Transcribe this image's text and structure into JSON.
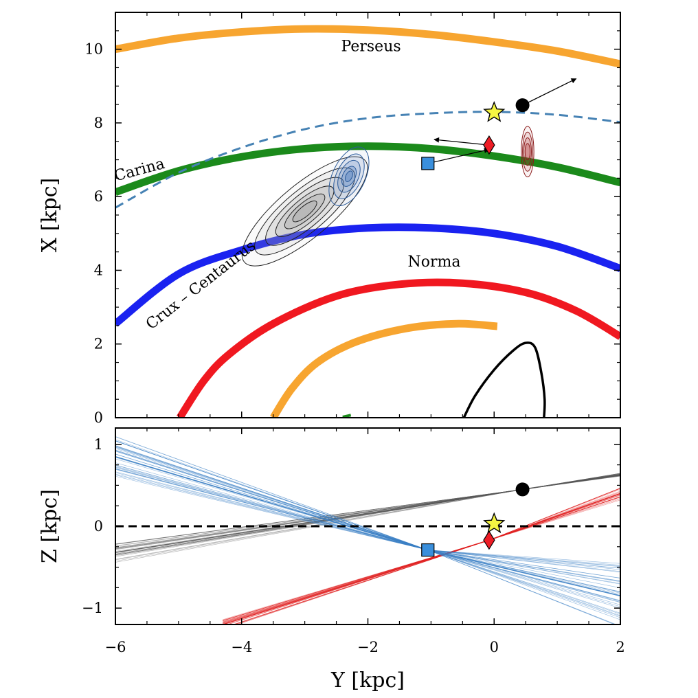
{
  "chart_data": [
    {
      "type": "line",
      "panel": "top",
      "xlabel": "Y [kpc]",
      "ylabel": "X [kpc]",
      "xlim": [
        -6,
        2
      ],
      "ylim": [
        0,
        11
      ],
      "xticks": [
        -6,
        -4,
        -2,
        0,
        2
      ],
      "yticks": [
        0,
        2,
        4,
        6,
        8,
        10
      ],
      "xtick_labels": [
        "",
        "",
        "",
        "",
        ""
      ],
      "ytick_labels": [
        "0",
        "2",
        "4",
        "6",
        "8",
        "10"
      ],
      "grid": false,
      "arms": [
        {
          "label": "Perseus",
          "color": "#f7a530",
          "width": 11,
          "label_pos": [
            -1.95,
            9.95
          ],
          "label_rotation": 0,
          "points": [
            [
              -6,
              10.0
            ],
            [
              -5,
              10.3
            ],
            [
              -4,
              10.47
            ],
            [
              -3,
              10.55
            ],
            [
              -2,
              10.52
            ],
            [
              -1,
              10.4
            ],
            [
              0,
              10.2
            ],
            [
              1,
              9.95
            ],
            [
              2,
              9.6
            ]
          ]
        },
        {
          "label": "Carina",
          "color": "#1b8a1b",
          "width": 11,
          "label_pos": [
            -5.6,
            6.6
          ],
          "label_rotation": -15,
          "points": [
            [
              -6,
              6.12
            ],
            [
              -5,
              6.7
            ],
            [
              -4,
              7.08
            ],
            [
              -3,
              7.3
            ],
            [
              -2,
              7.37
            ],
            [
              -1,
              7.3
            ],
            [
              0,
              7.1
            ],
            [
              1,
              6.8
            ],
            [
              2,
              6.38
            ]
          ]
        },
        {
          "label": "Crux – Centaurus",
          "color": "#1a22f0",
          "width": 11,
          "label_pos": [
            -4.6,
            3.5
          ],
          "label_rotation": -38,
          "points": [
            [
              -6,
              2.55
            ],
            [
              -5,
              3.9
            ],
            [
              -4,
              4.55
            ],
            [
              -3,
              4.98
            ],
            [
              -2,
              5.15
            ],
            [
              -1,
              5.15
            ],
            [
              0,
              5.0
            ],
            [
              1,
              4.65
            ],
            [
              2,
              4.05
            ]
          ]
        },
        {
          "label": "Norma",
          "color": "#f01820",
          "width": 11,
          "label_pos": [
            -0.95,
            4.1
          ],
          "label_rotation": 0,
          "points": [
            [
              -4.98,
              0
            ],
            [
              -4.6,
              1.0
            ],
            [
              -4.2,
              1.72
            ],
            [
              -3.5,
              2.55
            ],
            [
              -2.5,
              3.3
            ],
            [
              -1.5,
              3.62
            ],
            [
              -0.5,
              3.65
            ],
            [
              0.5,
              3.4
            ],
            [
              1.3,
              2.9
            ],
            [
              2,
              2.2
            ]
          ]
        },
        {
          "label": "",
          "color": "#f7a530",
          "width": 11,
          "label_pos": null,
          "label_rotation": 0,
          "points": [
            [
              -3.5,
              0
            ],
            [
              -3.2,
              0.8
            ],
            [
              -2.8,
              1.5
            ],
            [
              -2.2,
              2.05
            ],
            [
              -1.4,
              2.42
            ],
            [
              -0.6,
              2.55
            ],
            [
              0.05,
              2.48
            ]
          ]
        }
      ],
      "solar_circle": {
        "style": "dashed",
        "color": "#4682b4",
        "points": [
          [
            -6,
            5.7
          ],
          [
            -5,
            6.65
          ],
          [
            -4,
            7.33
          ],
          [
            -3,
            7.83
          ],
          [
            -2,
            8.13
          ],
          [
            -1,
            8.26
          ],
          [
            0,
            8.3
          ],
          [
            1,
            8.22
          ],
          [
            2,
            8.02
          ]
        ]
      },
      "orbit": {
        "color": "#000000",
        "points": [
          [
            -0.48,
            0
          ],
          [
            -0.3,
            0.6
          ],
          [
            0.0,
            1.3
          ],
          [
            0.3,
            1.82
          ],
          [
            0.5,
            2.03
          ],
          [
            0.65,
            1.9
          ],
          [
            0.75,
            1.2
          ],
          [
            0.8,
            0.5
          ],
          [
            0.79,
            0
          ]
        ]
      },
      "markers": [
        {
          "symbol": "star",
          "x": 0.0,
          "y": 8.28,
          "color": "#f5f542"
        },
        {
          "symbol": "circle",
          "x": 0.45,
          "y": 8.48,
          "color": "#000000"
        },
        {
          "symbol": "diamond",
          "x": -0.08,
          "y": 7.4,
          "color": "#ee1c25"
        },
        {
          "symbol": "square",
          "x": -1.05,
          "y": 6.9,
          "color": "#3a8fdc"
        }
      ],
      "arrows": [
        {
          "from": [
            0.45,
            8.48
          ],
          "to": [
            1.3,
            9.2
          ]
        },
        {
          "from": [
            -0.08,
            7.4
          ],
          "to": [
            -0.95,
            7.55
          ]
        },
        {
          "from": [
            -1.05,
            6.9
          ],
          "to": [
            -0.08,
            7.28
          ]
        }
      ],
      "contours": [
        {
          "color": "#222222",
          "center": [
            -3.0,
            5.6
          ],
          "rx": [
            1.25,
            1.0,
            0.78,
            0.58,
            0.4,
            0.24
          ],
          "ry": [
            0.42,
            0.33,
            0.26,
            0.19,
            0.13,
            0.08
          ],
          "angle": -40,
          "shade": "#aaaaaa"
        },
        {
          "color": "#2a5a9a",
          "center": [
            -2.3,
            6.55
          ],
          "rx": [
            0.5,
            0.38,
            0.27,
            0.17,
            0.09
          ],
          "ry": [
            0.26,
            0.2,
            0.15,
            0.1,
            0.05
          ],
          "angle": -65,
          "shade": "#4f7fc0"
        },
        {
          "color": "#8a1a1a",
          "center": [
            0.53,
            7.22
          ],
          "rx": [
            0.4,
            0.31,
            0.22,
            0.13
          ],
          "ry": [
            0.1,
            0.08,
            0.06,
            0.04
          ],
          "angle": -90,
          "shade": "#b03030"
        }
      ]
    },
    {
      "type": "line",
      "panel": "bottom",
      "xlabel": "Y [kpc]",
      "ylabel": "Z [kpc]",
      "xlim": [
        -6,
        2
      ],
      "ylim": [
        -1.2,
        1.2
      ],
      "xticks": [
        -6,
        -4,
        -2,
        0,
        2
      ],
      "yticks": [
        -1,
        0,
        1
      ],
      "xtick_labels": [
        "−6",
        "−4",
        "−2",
        "0",
        "2"
      ],
      "ytick_labels": [
        "−1",
        "0",
        "1"
      ],
      "grid": false,
      "zero_line": {
        "style": "dashed",
        "color": "#000000",
        "y": 0
      },
      "markers": [
        {
          "symbol": "star",
          "x": 0.0,
          "y": 0.03,
          "color": "#f5f542"
        },
        {
          "symbol": "circle",
          "x": 0.45,
          "y": 0.45,
          "color": "#000000"
        },
        {
          "symbol": "diamond",
          "x": -0.08,
          "y": -0.17,
          "color": "#ee1c25"
        },
        {
          "symbol": "square",
          "x": -1.05,
          "y": -0.29,
          "color": "#3a8fdc"
        }
      ],
      "trajectory_bundles": [
        {
          "color": "#555555",
          "anchor": [
            0.45,
            0.45
          ],
          "left_end": [
            -6,
            -0.32
          ],
          "left_spread": 0.12,
          "right_end": [
            2,
            0.63
          ],
          "right_spread": 0.02,
          "count": 30
        },
        {
          "color": "#e02020",
          "anchor": [
            -0.08,
            -0.17
          ],
          "left_end": [
            -4.3,
            -1.2
          ],
          "left_spread": 0.06,
          "right_end": [
            2,
            0.4
          ],
          "right_spread": 0.08,
          "count": 30
        },
        {
          "color": "#3b7fc4",
          "anchor": [
            -1.05,
            -0.29
          ],
          "left_end": [
            -6,
            0.85
          ],
          "left_spread": 0.25,
          "right_end": [
            2,
            -0.85
          ],
          "right_spread": 0.4,
          "count": 40
        }
      ]
    }
  ]
}
